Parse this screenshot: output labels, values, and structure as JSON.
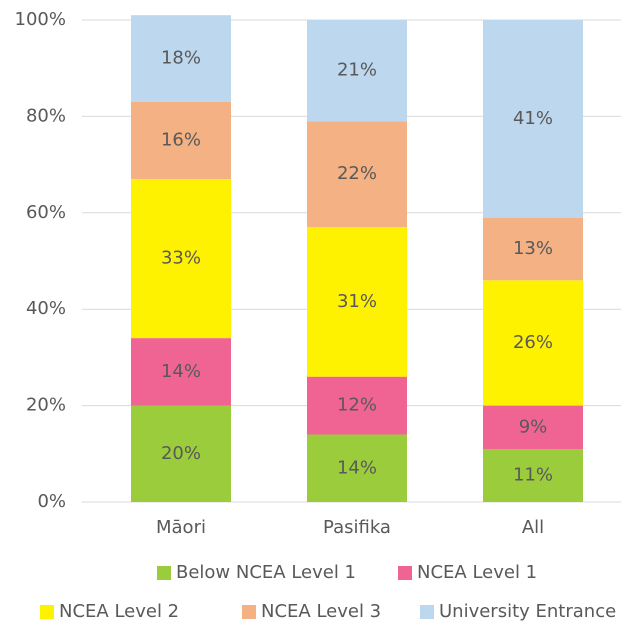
{
  "chart_data": {
    "type": "stacked_bar",
    "categories": [
      "Māori",
      "Pasifika",
      "All"
    ],
    "series": [
      {
        "name": "Below NCEA Level 1",
        "color": "#9bcc3c",
        "values": [
          20,
          14,
          11
        ],
        "value_labels": [
          "20%",
          "14%",
          "11%"
        ]
      },
      {
        "name": "NCEA Level 1",
        "color": "#f06493",
        "values": [
          14,
          12,
          9
        ],
        "value_labels": [
          "14%",
          "12%",
          "9%"
        ]
      },
      {
        "name": "NCEA Level 2",
        "color": "#fff200",
        "values": [
          33,
          31,
          26
        ],
        "value_labels": [
          "33%",
          "31%",
          "26%"
        ]
      },
      {
        "name": "NCEA Level 3",
        "color": "#f4b183",
        "values": [
          16,
          22,
          13
        ],
        "value_labels": [
          "16%",
          "22%",
          "13%"
        ]
      },
      {
        "name": "University Entrance",
        "color": "#bdd7ee",
        "values": [
          18,
          21,
          41
        ],
        "value_labels": [
          "18%",
          "21%",
          "41%"
        ]
      }
    ],
    "ylim": [
      0,
      100
    ],
    "yticks": [
      {
        "value": 0,
        "label": "0%"
      },
      {
        "value": 20,
        "label": "20%"
      },
      {
        "value": 40,
        "label": "40%"
      },
      {
        "value": 60,
        "label": "60%"
      },
      {
        "value": 80,
        "label": "80%"
      },
      {
        "value": 100,
        "label": "100%"
      }
    ],
    "grid": true,
    "legend": "bottom"
  }
}
